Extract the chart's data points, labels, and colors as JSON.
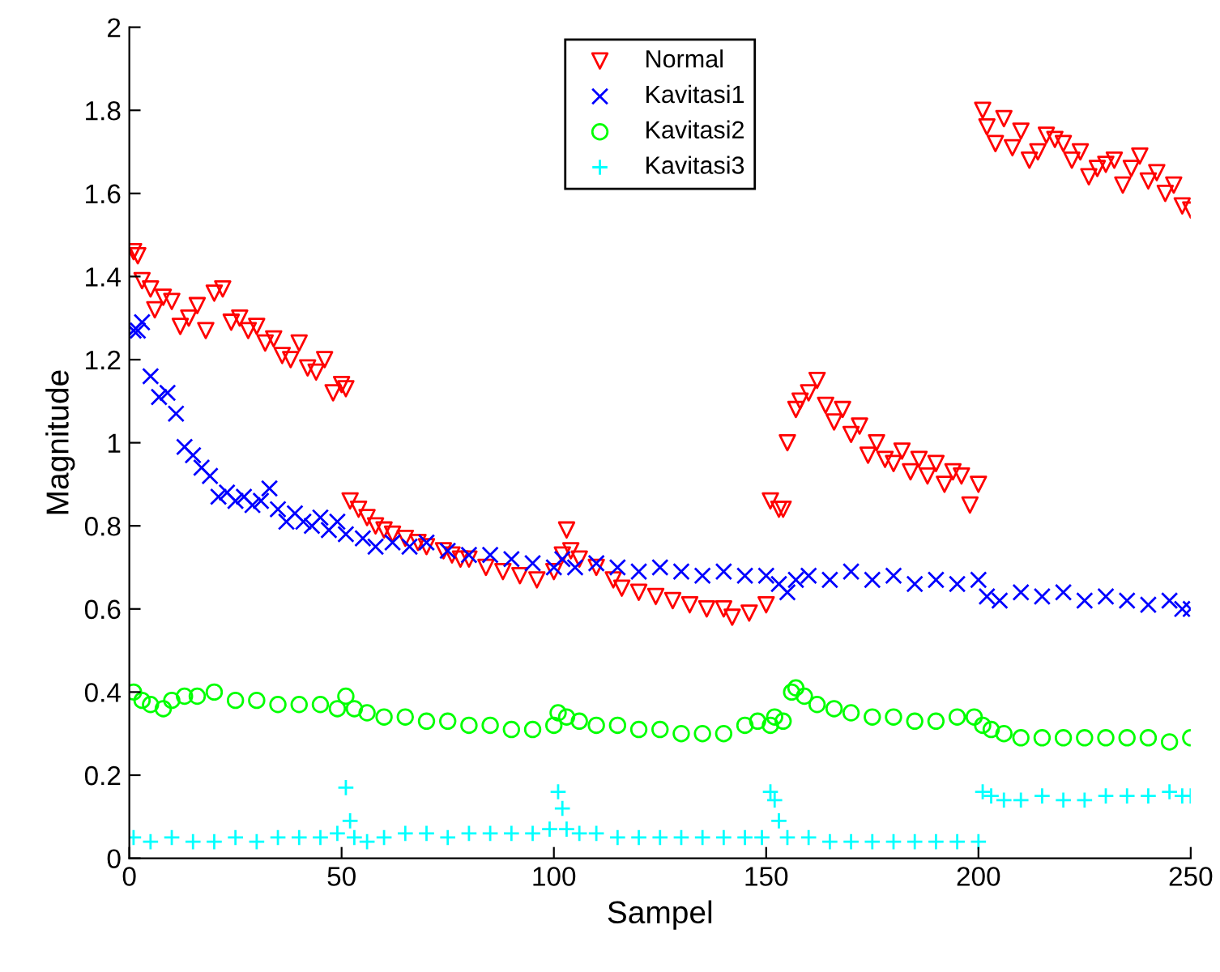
{
  "chart_data": {
    "type": "scatter",
    "xlabel": "Sampel",
    "ylabel": "Magnitude",
    "xlim": [
      0,
      250
    ],
    "xticks": [
      0,
      50,
      100,
      150,
      200,
      250
    ],
    "ylim": [
      0,
      2
    ],
    "yticks": [
      0,
      0.2,
      0.4,
      0.6,
      0.8,
      1,
      1.2,
      1.4,
      1.6,
      1.8,
      2
    ],
    "grid": false,
    "legend": "top",
    "series": [
      {
        "name": "Normal",
        "color": "#ff0000",
        "marker": "triangle",
        "x": [
          1,
          2,
          3,
          5,
          6,
          8,
          10,
          12,
          14,
          16,
          18,
          20,
          22,
          24,
          26,
          28,
          30,
          32,
          34,
          36,
          38,
          40,
          42,
          44,
          46,
          48,
          50,
          51,
          52,
          54,
          56,
          58,
          60,
          62,
          65,
          68,
          70,
          74,
          76,
          78,
          80,
          84,
          88,
          92,
          96,
          100,
          102,
          103,
          104,
          106,
          110,
          114,
          116,
          120,
          124,
          128,
          132,
          136,
          140,
          142,
          146,
          150,
          151,
          153,
          154,
          155,
          157,
          158,
          160,
          162,
          164,
          166,
          168,
          170,
          172,
          174,
          176,
          178,
          180,
          182,
          184,
          186,
          188,
          190,
          192,
          194,
          196,
          198,
          200,
          201,
          202,
          204,
          206,
          208,
          210,
          212,
          214,
          216,
          218,
          220,
          222,
          224,
          226,
          228,
          230,
          232,
          234,
          236,
          238,
          240,
          242,
          244,
          246,
          248,
          250
        ],
        "values": [
          1.46,
          1.45,
          1.39,
          1.37,
          1.32,
          1.35,
          1.34,
          1.28,
          1.3,
          1.33,
          1.27,
          1.36,
          1.37,
          1.29,
          1.3,
          1.27,
          1.28,
          1.24,
          1.25,
          1.21,
          1.2,
          1.24,
          1.18,
          1.17,
          1.2,
          1.12,
          1.14,
          1.13,
          0.86,
          0.84,
          0.82,
          0.8,
          0.79,
          0.78,
          0.77,
          0.76,
          0.75,
          0.74,
          0.73,
          0.72,
          0.72,
          0.7,
          0.69,
          0.68,
          0.67,
          0.69,
          0.73,
          0.79,
          0.74,
          0.72,
          0.7,
          0.67,
          0.65,
          0.64,
          0.63,
          0.62,
          0.61,
          0.6,
          0.6,
          0.58,
          0.59,
          0.61,
          0.86,
          0.84,
          0.84,
          1.0,
          1.08,
          1.1,
          1.12,
          1.15,
          1.09,
          1.05,
          1.08,
          1.02,
          1.04,
          0.97,
          1.0,
          0.96,
          0.95,
          0.98,
          0.93,
          0.96,
          0.92,
          0.95,
          0.9,
          0.93,
          0.92,
          0.85,
          0.9,
          1.8,
          1.76,
          1.72,
          1.78,
          1.71,
          1.75,
          1.68,
          1.7,
          1.74,
          1.73,
          1.72,
          1.68,
          1.7,
          1.64,
          1.66,
          1.67,
          1.68,
          1.62,
          1.66,
          1.69,
          1.63,
          1.65,
          1.6,
          1.62,
          1.57,
          1.56
        ]
      },
      {
        "name": "Kavitasi1",
        "color": "#0000ff",
        "marker": "cross",
        "x": [
          1,
          2,
          3,
          5,
          7,
          9,
          11,
          13,
          15,
          17,
          19,
          21,
          23,
          25,
          27,
          29,
          31,
          33,
          35,
          37,
          39,
          41,
          43,
          45,
          47,
          49,
          51,
          55,
          58,
          62,
          66,
          70,
          75,
          80,
          85,
          90,
          95,
          100,
          102,
          105,
          110,
          115,
          120,
          125,
          130,
          135,
          140,
          145,
          150,
          153,
          155,
          157,
          160,
          165,
          170,
          175,
          180,
          185,
          190,
          195,
          200,
          202,
          205,
          210,
          215,
          220,
          225,
          230,
          235,
          240,
          245,
          248,
          250
        ],
        "values": [
          1.27,
          1.27,
          1.29,
          1.16,
          1.11,
          1.12,
          1.07,
          0.99,
          0.97,
          0.94,
          0.92,
          0.87,
          0.88,
          0.86,
          0.87,
          0.85,
          0.86,
          0.89,
          0.84,
          0.81,
          0.83,
          0.81,
          0.8,
          0.82,
          0.79,
          0.81,
          0.78,
          0.77,
          0.75,
          0.76,
          0.75,
          0.76,
          0.74,
          0.73,
          0.73,
          0.72,
          0.71,
          0.7,
          0.72,
          0.7,
          0.71,
          0.7,
          0.69,
          0.7,
          0.69,
          0.68,
          0.69,
          0.68,
          0.68,
          0.66,
          0.64,
          0.67,
          0.68,
          0.67,
          0.69,
          0.67,
          0.68,
          0.66,
          0.67,
          0.66,
          0.67,
          0.63,
          0.62,
          0.64,
          0.63,
          0.64,
          0.62,
          0.63,
          0.62,
          0.61,
          0.62,
          0.6,
          0.6
        ]
      },
      {
        "name": "Kavitasi2",
        "color": "#00ff00",
        "marker": "circle",
        "x": [
          1,
          3,
          5,
          8,
          10,
          13,
          16,
          20,
          25,
          30,
          35,
          40,
          45,
          49,
          51,
          53,
          56,
          60,
          65,
          70,
          75,
          80,
          85,
          90,
          95,
          100,
          101,
          103,
          106,
          110,
          115,
          120,
          125,
          130,
          135,
          140,
          145,
          148,
          151,
          152,
          154,
          156,
          157,
          159,
          162,
          166,
          170,
          175,
          180,
          185,
          190,
          195,
          199,
          201,
          203,
          206,
          210,
          215,
          220,
          225,
          230,
          235,
          240,
          245,
          250
        ],
        "values": [
          0.4,
          0.38,
          0.37,
          0.36,
          0.38,
          0.39,
          0.39,
          0.4,
          0.38,
          0.38,
          0.37,
          0.37,
          0.37,
          0.36,
          0.39,
          0.36,
          0.35,
          0.34,
          0.34,
          0.33,
          0.33,
          0.32,
          0.32,
          0.31,
          0.31,
          0.32,
          0.35,
          0.34,
          0.33,
          0.32,
          0.32,
          0.31,
          0.31,
          0.3,
          0.3,
          0.3,
          0.32,
          0.33,
          0.32,
          0.34,
          0.33,
          0.4,
          0.41,
          0.39,
          0.37,
          0.36,
          0.35,
          0.34,
          0.34,
          0.33,
          0.33,
          0.34,
          0.34,
          0.32,
          0.31,
          0.3,
          0.29,
          0.29,
          0.29,
          0.29,
          0.29,
          0.29,
          0.29,
          0.28,
          0.29
        ]
      },
      {
        "name": "Kavitasi3",
        "color": "#00ffff",
        "marker": "plus",
        "x": [
          1,
          5,
          10,
          15,
          20,
          25,
          30,
          35,
          40,
          45,
          49,
          51,
          52,
          53,
          56,
          60,
          65,
          70,
          75,
          80,
          85,
          90,
          95,
          99,
          101,
          102,
          103,
          106,
          110,
          115,
          120,
          125,
          130,
          135,
          140,
          145,
          149,
          151,
          152,
          153,
          155,
          160,
          165,
          170,
          175,
          180,
          185,
          190,
          195,
          200,
          201,
          203,
          206,
          210,
          215,
          220,
          225,
          230,
          235,
          240,
          245,
          248,
          250
        ],
        "values": [
          0.05,
          0.04,
          0.05,
          0.04,
          0.04,
          0.05,
          0.04,
          0.05,
          0.05,
          0.05,
          0.06,
          0.17,
          0.09,
          0.05,
          0.04,
          0.05,
          0.06,
          0.06,
          0.05,
          0.06,
          0.06,
          0.06,
          0.06,
          0.07,
          0.16,
          0.12,
          0.07,
          0.06,
          0.06,
          0.05,
          0.05,
          0.05,
          0.05,
          0.05,
          0.05,
          0.05,
          0.05,
          0.16,
          0.14,
          0.09,
          0.05,
          0.05,
          0.04,
          0.04,
          0.04,
          0.04,
          0.04,
          0.04,
          0.04,
          0.04,
          0.16,
          0.15,
          0.14,
          0.14,
          0.15,
          0.14,
          0.14,
          0.15,
          0.15,
          0.15,
          0.16,
          0.15,
          0.15
        ]
      }
    ]
  }
}
